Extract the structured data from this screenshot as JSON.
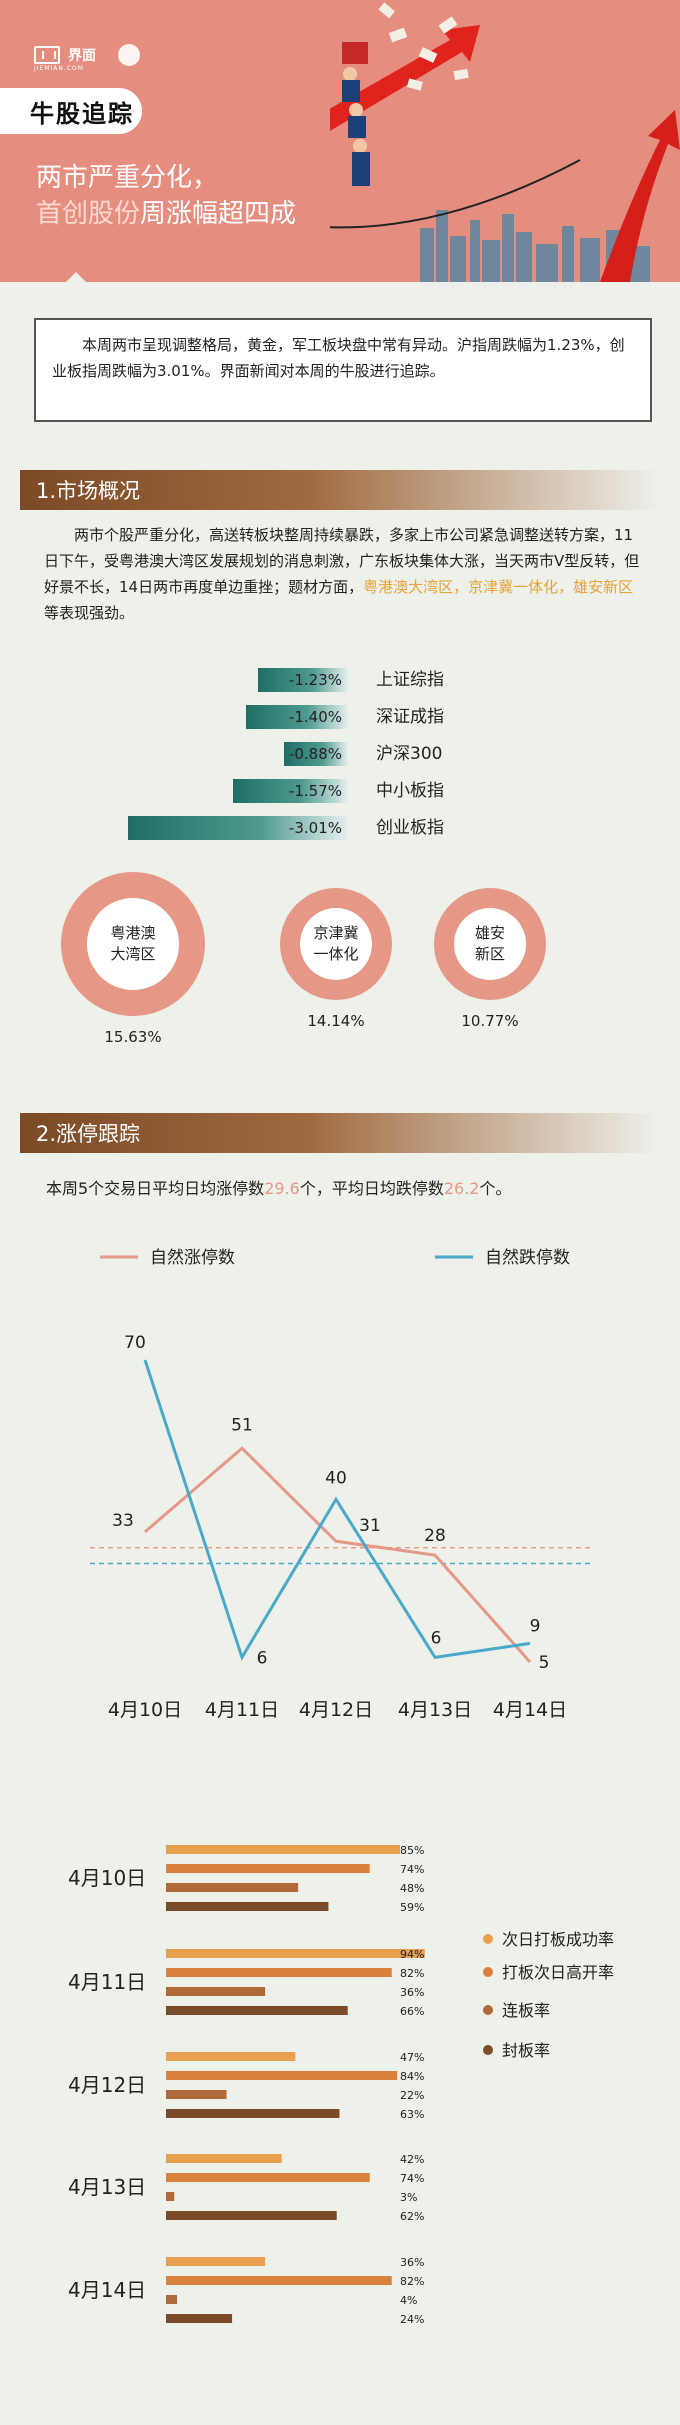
{
  "header": {
    "logo_text": "界面",
    "logo_sub": "JIEMIAN.COM",
    "section_tag": "牛股追踪",
    "headline_line1": "两市严重分化，",
    "headline_line2_hi": "首创股份",
    "headline_line2_rest": "周涨幅超四成"
  },
  "intro": "本周两市呈现调整格局，黄金，军工板块盘中常有异动。沪指周跌幅为1.23%，创业板指周跌幅为3.01%。界面新闻对本周的牛股进行追踪。",
  "section1": {
    "title": "1.市场概况",
    "text_part1": "两市个股严重分化，高送转板块整周持续暴跌，多家上市公司紧急调整送转方案，11日下午，受粤港澳大湾区发展规划的消息刺激，广东板块集体大涨，当天两市V型反转，但好景不长，14日两市再度单边重挫；题材方面，",
    "text_hi": "粤港澳大湾区，京津冀一体化，雄安新区",
    "text_part2": "等表现强劲。",
    "indices": [
      {
        "name": "上证综指",
        "value": -1.23,
        "label": "-1.23%"
      },
      {
        "name": "深证成指",
        "value": -1.4,
        "label": "-1.40%"
      },
      {
        "name": "沪深300",
        "value": -0.88,
        "label": "-0.88%"
      },
      {
        "name": "中小板指",
        "value": -1.57,
        "label": "-1.57%"
      },
      {
        "name": "创业板指",
        "value": -3.01,
        "label": "-3.01%"
      }
    ],
    "themes": [
      {
        "name_l1": "粤港澳",
        "name_l2": "大湾区",
        "value": 15.63,
        "label": "15.63%"
      },
      {
        "name_l1": "京津冀",
        "name_l2": "一体化",
        "value": 14.14,
        "label": "14.14%"
      },
      {
        "name_l1": "雄安",
        "name_l2": "新区",
        "value": 10.77,
        "label": "10.77%"
      }
    ]
  },
  "section2": {
    "title": "2.涨停跟踪",
    "summary_a": "本周5个交易日平均日均涨停数",
    "avg_up": "29.6",
    "summary_b": "个，平均日均跌停数",
    "avg_down": "26.2",
    "summary_c": "个。"
  },
  "colors": {
    "up": "#e59886",
    "down": "#4aa8c9",
    "teal": "#1e6e65",
    "brown": "#7b4a26",
    "bar1": "#e8a050",
    "bar2": "#d9823e",
    "bar3": "#b06a3a",
    "bar4": "#7b4a26"
  },
  "chart_data": [
    {
      "type": "line",
      "x": [
        "4月10日",
        "4月11日",
        "4月12日",
        "4月13日",
        "4月14日"
      ],
      "series": [
        {
          "name": "自然涨停数",
          "values": [
            33,
            51,
            31,
            28,
            5
          ]
        },
        {
          "name": "自然跌停数",
          "values": [
            70,
            6,
            40,
            6,
            9
          ]
        }
      ],
      "reference_lines": [
        29.6,
        26.2
      ]
    },
    {
      "type": "bar",
      "categories": [
        "4月10日",
        "4月11日",
        "4月12日",
        "4月13日",
        "4月14日"
      ],
      "series": [
        {
          "name": "次日打板成功率",
          "values": [
            85,
            94,
            47,
            42,
            36
          ]
        },
        {
          "name": "打板次日高开率",
          "values": [
            74,
            82,
            84,
            74,
            82
          ]
        },
        {
          "name": "连板率",
          "values": [
            48,
            36,
            22,
            3,
            4
          ]
        },
        {
          "name": "封板率",
          "values": [
            59,
            66,
            63,
            62,
            24
          ]
        }
      ],
      "legend": "right"
    }
  ]
}
